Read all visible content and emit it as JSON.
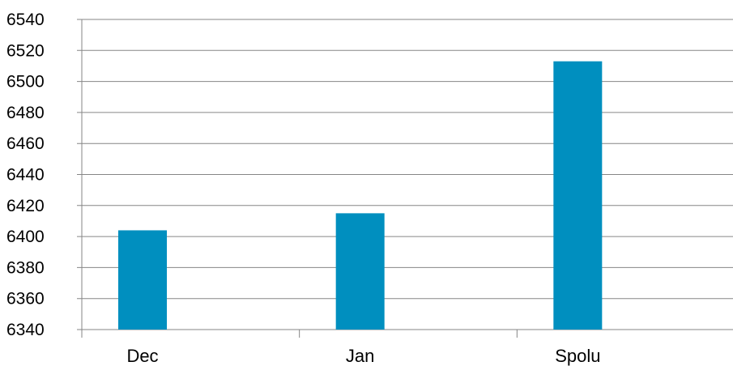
{
  "chart_data": {
    "type": "bar",
    "categories": [
      "Dec",
      "Jan",
      "Spolu"
    ],
    "values": [
      6404,
      6415,
      6513
    ],
    "ylim": [
      6340,
      6540
    ],
    "yticks": [
      6340,
      6360,
      6380,
      6400,
      6420,
      6440,
      6460,
      6480,
      6500,
      6520,
      6540
    ],
    "grid": true,
    "legend": "none",
    "colors": {
      "bar": "#008FBF",
      "grid": "#868686",
      "axis": "#868686"
    }
  }
}
